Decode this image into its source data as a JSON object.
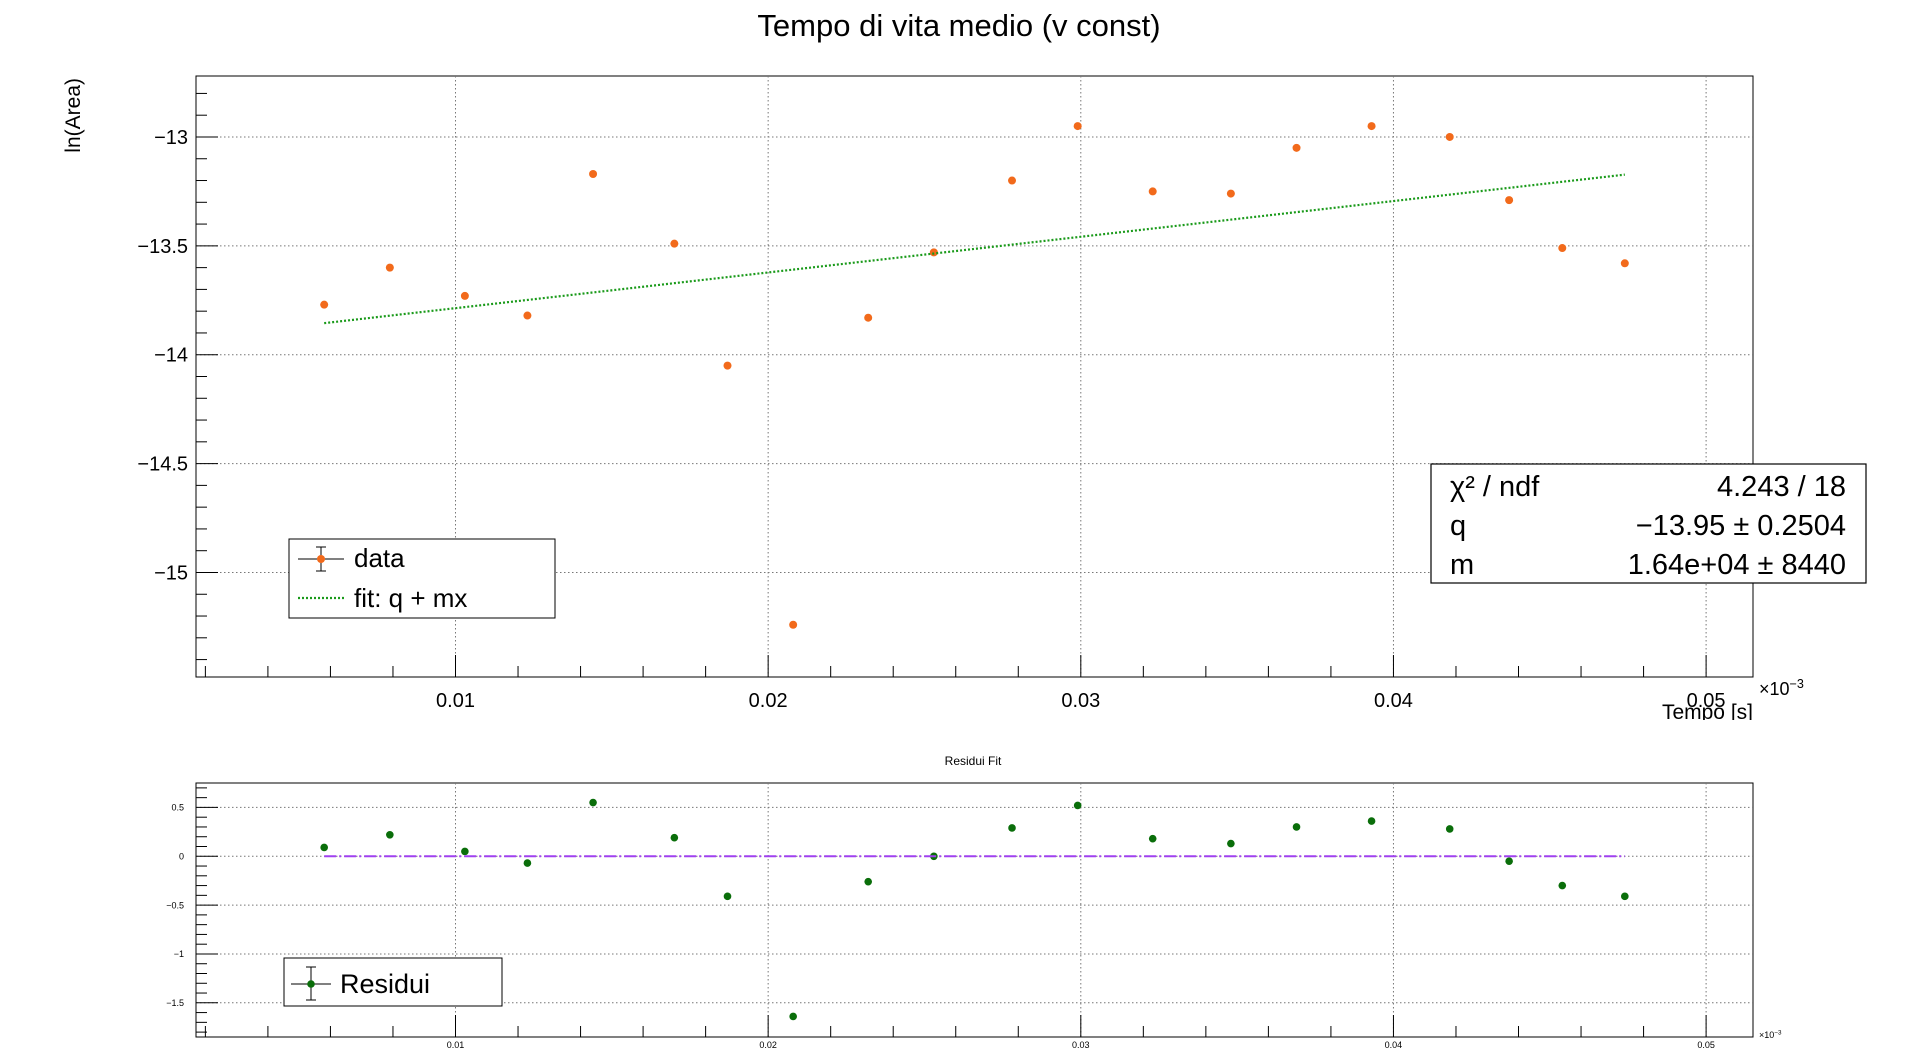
{
  "chart_data": [
    {
      "type": "scatter",
      "title": "Tempo di vita medio (v const)",
      "xlabel": "Tempo [s]",
      "ylabel": "ln(Area)",
      "x_multiplier": "×10",
      "x_exponent": "−3",
      "xlim": [
        1.7,
        51.5
      ],
      "ylim": [
        -15.48,
        -12.72
      ],
      "xticks": [
        10,
        20,
        30,
        40,
        50
      ],
      "xtick_labels": [
        "0.01",
        "0.02",
        "0.03",
        "0.04",
        "0.05"
      ],
      "yticks": [
        -13,
        -13.5,
        -14,
        -14.5,
        -15
      ],
      "ytick_labels": [
        "−13",
        "−13.5",
        "−14",
        "−14.5",
        "−15"
      ],
      "grid": true,
      "series": [
        {
          "name": "data",
          "color": "#f26a1b",
          "x": [
            5.8,
            7.9,
            10.3,
            12.3,
            14.4,
            17.0,
            18.7,
            20.8,
            23.2,
            25.3,
            27.8,
            29.9,
            32.3,
            34.8,
            36.9,
            39.3,
            41.8,
            43.7,
            45.4,
            47.4
          ],
          "y": [
            -13.77,
            -13.6,
            -13.73,
            -13.82,
            -13.17,
            -13.49,
            -14.05,
            -15.24,
            -13.83,
            -13.53,
            -13.2,
            -12.95,
            -13.25,
            -13.26,
            -13.05,
            -12.95,
            -13.0,
            -13.29,
            -13.51,
            -13.58
          ]
        },
        {
          "name": "fit: q + mx",
          "color": "#1a9a1a",
          "line": true,
          "x": [
            5.8,
            47.4
          ],
          "y": [
            -13.855,
            -13.173
          ]
        }
      ],
      "legend": {
        "placement": "bottom-left",
        "entries": [
          "data",
          "fit: q + mx"
        ]
      },
      "stats_box": {
        "placement": "bottom-right",
        "rows": [
          {
            "label": "χ² / ndf",
            "value": "4.243 / 18"
          },
          {
            "label": "q",
            "value": "−13.95 ± 0.2504"
          },
          {
            "label": "m",
            "value": "1.64e+04 ±  8440"
          }
        ]
      }
    },
    {
      "type": "scatter",
      "title": "Residui Fit",
      "x_multiplier": "×10",
      "x_exponent": "−3",
      "xlim": [
        1.7,
        51.5
      ],
      "ylim": [
        -1.85,
        0.75
      ],
      "xticks": [
        10,
        20,
        30,
        40,
        50
      ],
      "xtick_labels": [
        "0.01",
        "0.02",
        "0.03",
        "0.04",
        "0.05"
      ],
      "yticks": [
        0.5,
        0,
        -0.5,
        -1,
        -1.5
      ],
      "ytick_labels": [
        "0.5",
        "0",
        "−0.5",
        "−1",
        "−1.5"
      ],
      "grid": true,
      "series": [
        {
          "name": "Residui",
          "color": "#0a6e0a",
          "x": [
            5.8,
            7.9,
            10.3,
            12.3,
            14.4,
            17.0,
            18.7,
            20.8,
            23.2,
            25.3,
            27.8,
            29.9,
            32.3,
            34.8,
            36.9,
            39.3,
            41.8,
            43.7,
            45.4,
            47.4
          ],
          "y": [
            0.09,
            0.22,
            0.05,
            -0.07,
            0.55,
            0.19,
            -0.41,
            -1.64,
            -0.26,
            0.0,
            0.29,
            0.52,
            0.18,
            0.13,
            0.3,
            0.36,
            0.28,
            -0.05,
            -0.3,
            -0.41
          ]
        },
        {
          "color": "#a040f0",
          "line": true,
          "x": [
            5.8,
            47.4
          ],
          "y": [
            0,
            0
          ]
        }
      ],
      "legend": {
        "placement": "bottom-left",
        "entries": [
          "Residui"
        ]
      }
    }
  ]
}
